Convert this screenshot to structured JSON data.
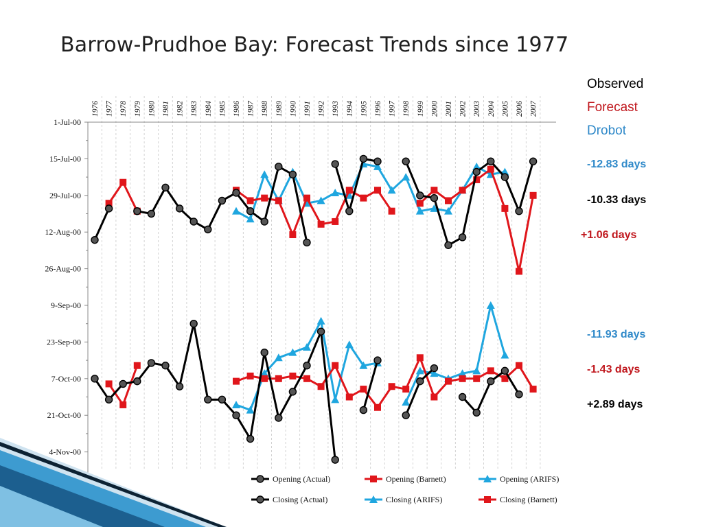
{
  "title": "Barrow-Prudhoe Bay:  Forecast Trends since 1977",
  "legend_key": {
    "observed": "Observed",
    "forecast": "Forecast",
    "drobot": "Drobot"
  },
  "stats": {
    "opening_drobot": "-12.83 days",
    "opening_observed": "-10.33 days",
    "opening_forecast": "+1.06 days",
    "closing_drobot": "-11.93 days",
    "closing_forecast": "-1.43 days",
    "closing_observed": "+2.89 days"
  },
  "colors": {
    "observed": "#000000",
    "forecast": "#c0171d",
    "drobot": "#2f89c9",
    "actual_line": "#000000",
    "actual_marker": "#555555",
    "barnett": "#e0161b",
    "arifs": "#1fa6df",
    "decoration_dark": "#0d2233",
    "decoration_blue": "#3d9bd0"
  },
  "chart_data": {
    "type": "line",
    "x_years": [
      1976,
      1977,
      1978,
      1979,
      1980,
      1981,
      1982,
      1983,
      1984,
      1985,
      1986,
      1987,
      1988,
      1989,
      1990,
      1991,
      1992,
      1993,
      1994,
      1995,
      1996,
      1997,
      1998,
      1999,
      2000,
      2001,
      2002,
      2003,
      2004,
      2005,
      2006,
      2007
    ],
    "x_tick_labels": [
      "1976",
      "1977",
      "1978",
      "1979",
      "1980",
      "1981",
      "1982",
      "1983",
      "1984",
      "1985",
      "1986",
      "1987",
      "1988",
      "1989",
      "1990",
      "1991",
      "1992",
      "1993",
      "1994",
      "1995",
      "1996",
      "1997",
      "1998",
      "1999",
      "2000",
      "2001",
      "2002",
      "2003",
      "2004",
      "2005",
      "2006",
      "2007"
    ],
    "y_axis": {
      "reversed": true,
      "min_day_offset": 0,
      "max_day_offset": 133,
      "ticks": [
        {
          "label": "1-Jul-00",
          "day": 0
        },
        {
          "label": "15-Jul-00",
          "day": 14
        },
        {
          "label": "29-Jul-00",
          "day": 28
        },
        {
          "label": "12-Aug-00",
          "day": 42
        },
        {
          "label": "26-Aug-00",
          "day": 56
        },
        {
          "label": "9-Sep-00",
          "day": 70
        },
        {
          "label": "23-Sep-00",
          "day": 84
        },
        {
          "label": "7-Oct-00",
          "day": 98
        },
        {
          "label": "21-Oct-00",
          "day": 112
        },
        {
          "label": "4-Nov-00",
          "day": 126
        }
      ]
    },
    "grid": "vertical-dashed",
    "legend_position": "bottom",
    "series": [
      {
        "name": "Opening (Actual)",
        "color_key": "actual_line",
        "marker": "circle",
        "values": [
          45,
          33,
          null,
          34,
          35,
          25,
          33,
          38,
          41,
          30,
          27,
          34,
          38,
          17,
          20,
          46,
          null,
          16,
          34,
          14,
          15,
          null,
          15,
          28,
          29,
          47,
          44,
          19,
          15,
          21,
          34,
          15
        ]
      },
      {
        "name": "Opening (Barnett)",
        "color_key": "barnett",
        "marker": "square",
        "values": [
          null,
          31,
          23,
          34,
          null,
          null,
          null,
          null,
          null,
          null,
          26,
          30,
          29,
          30,
          43,
          29,
          39,
          38,
          26,
          29,
          26,
          34,
          null,
          31,
          26,
          30,
          26,
          22,
          18,
          33,
          57,
          28
        ]
      },
      {
        "name": "Opening (ARIFS)",
        "color_key": "arifs",
        "marker": "triangle",
        "values": [
          null,
          null,
          null,
          null,
          null,
          null,
          null,
          null,
          null,
          null,
          34,
          37,
          20,
          30,
          19,
          31,
          30,
          27,
          28,
          16,
          17,
          26,
          21,
          34,
          33,
          34,
          26,
          17,
          20,
          19,
          null,
          null
        ]
      },
      {
        "name": "Closing (Actual)",
        "color_key": "actual_line",
        "marker": "circle",
        "values": [
          98,
          106,
          100,
          99,
          92,
          93,
          101,
          77,
          106,
          106,
          112,
          121,
          88,
          113,
          103,
          93,
          80,
          129,
          null,
          110,
          91,
          null,
          112,
          99,
          94,
          null,
          105,
          111,
          99,
          95,
          104,
          null
        ]
      },
      {
        "name": "Closing (ARIFS)",
        "color_key": "arifs",
        "marker": "triangle",
        "values": [
          null,
          null,
          null,
          null,
          null,
          null,
          null,
          null,
          null,
          null,
          108,
          110,
          96,
          90,
          88,
          86,
          76,
          106,
          85,
          93,
          92,
          null,
          107,
          95,
          96,
          98,
          96,
          95,
          70,
          89,
          null,
          null
        ]
      },
      {
        "name": "Closing (Barnett)",
        "color_key": "barnett",
        "marker": "square",
        "values": [
          null,
          100,
          108,
          93,
          null,
          null,
          null,
          null,
          null,
          null,
          99,
          97,
          98,
          98,
          97,
          98,
          101,
          93,
          105,
          102,
          109,
          101,
          102,
          90,
          105,
          99,
          98,
          98,
          95,
          98,
          93,
          102
        ]
      }
    ]
  }
}
